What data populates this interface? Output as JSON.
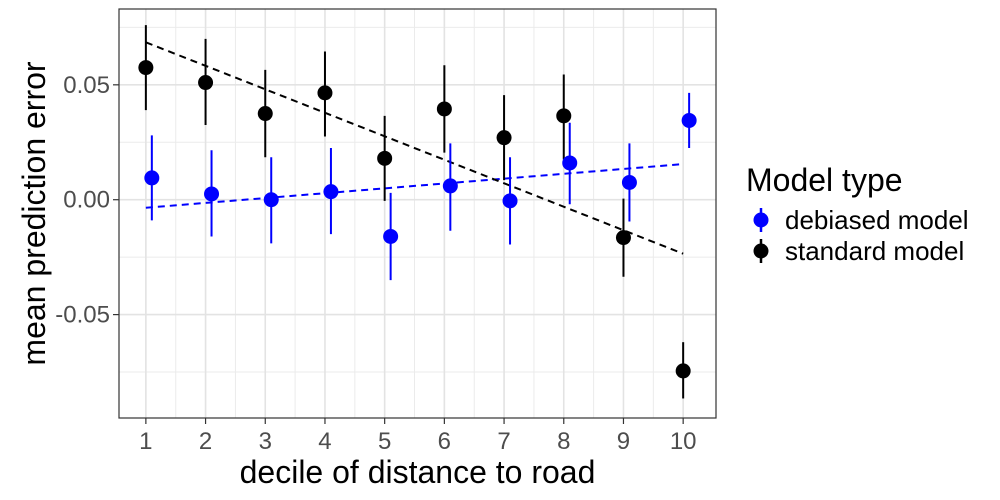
{
  "chart_data": {
    "type": "scatter",
    "title": "",
    "xlabel": "decile of distance to road",
    "ylabel": "mean prediction error",
    "xlim": [
      0.55,
      10.55
    ],
    "ylim": [
      -0.095,
      0.083
    ],
    "x_ticks": [
      1,
      2,
      3,
      4,
      5,
      6,
      7,
      8,
      9,
      10
    ],
    "x_tick_labels": [
      "1",
      "2",
      "3",
      "4",
      "5",
      "6",
      "7",
      "8",
      "9",
      "10"
    ],
    "y_ticks": [
      -0.05,
      0,
      0.05
    ],
    "y_tick_labels": [
      "-0.05",
      "0.00",
      "0.05"
    ],
    "grid": true,
    "legend": {
      "title": "Model type",
      "placement": "right",
      "entries": [
        "debiased model",
        "standard model"
      ]
    },
    "series": [
      {
        "name": "debiased model",
        "color": "#0000ff",
        "x_offset": 0.1,
        "x": [
          1,
          2,
          3,
          4,
          5,
          6,
          7,
          8,
          9,
          10
        ],
        "y": [
          0.0095,
          0.0025,
          0.0,
          0.0035,
          -0.016,
          0.006,
          -0.0005,
          0.016,
          0.0075,
          0.0345
        ],
        "lower": [
          -0.009,
          -0.016,
          -0.019,
          -0.015,
          -0.035,
          -0.0135,
          -0.0195,
          -0.002,
          -0.0095,
          0.0225
        ],
        "upper": [
          0.028,
          0.0215,
          0.0185,
          0.0225,
          0.003,
          0.0245,
          0.0185,
          0.0335,
          0.0245,
          0.0465
        ],
        "trend": {
          "x": [
            1,
            10
          ],
          "y": [
            -0.0035,
            0.0155
          ]
        }
      },
      {
        "name": "standard model",
        "color": "#000000",
        "x_offset": 0.0,
        "x": [
          1,
          2,
          3,
          4,
          5,
          6,
          7,
          8,
          9,
          10
        ],
        "y": [
          0.0575,
          0.051,
          0.0375,
          0.0465,
          0.018,
          0.0395,
          0.027,
          0.0365,
          -0.0165,
          -0.0745
        ],
        "lower": [
          0.039,
          0.0325,
          0.0185,
          0.0275,
          -0.0005,
          0.0205,
          0.0085,
          0.0175,
          -0.0335,
          -0.0865
        ],
        "upper": [
          0.076,
          0.07,
          0.0565,
          0.0645,
          0.0365,
          0.0585,
          0.0455,
          0.0545,
          0.0005,
          -0.062
        ],
        "trend": {
          "x": [
            1,
            10
          ],
          "y": [
            0.0685,
            -0.0235
          ]
        }
      }
    ]
  }
}
